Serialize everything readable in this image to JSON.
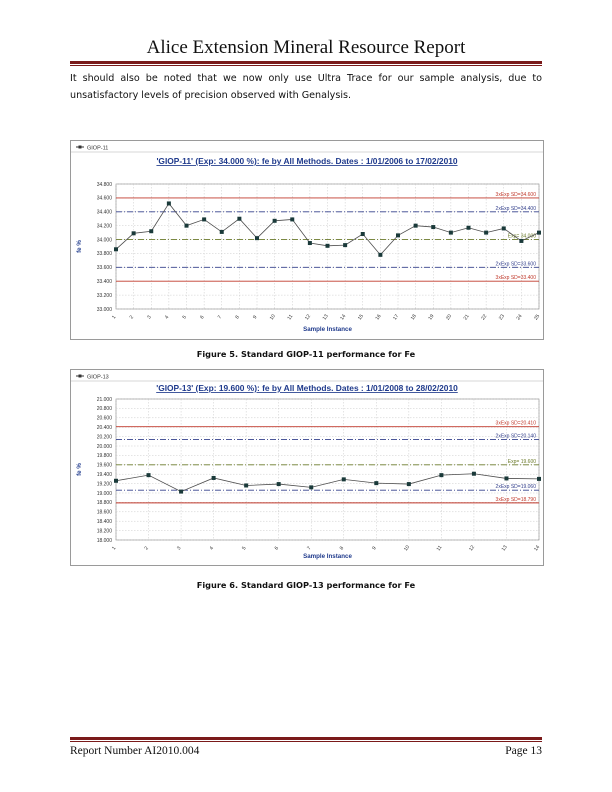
{
  "header": {
    "title": "Alice Extension Mineral Resource Report"
  },
  "intro_text": "It should also be noted that we now only use Ultra Trace for our sample analysis, due to unsatisfactory levels of precision observed with Genalysis.",
  "footer": {
    "report_number": "Report Number AI2010.004",
    "page": "Page 13"
  },
  "chart_data": [
    {
      "type": "line",
      "legend": "GIOP-11",
      "title": "'GIOP-11' (Exp: 34.000 %): fe by All Methods. Dates : 1/01/2006 to 17/02/2010",
      "xlabel": "Sample Instance",
      "ylabel": "fe %",
      "ylim": [
        33.0,
        34.8
      ],
      "yticks": [
        "34.800",
        "34.600",
        "34.400",
        "34.200",
        "34.000",
        "33.800",
        "33.600",
        "33.400",
        "33.200",
        "33.000"
      ],
      "categories": [
        "1",
        "2",
        "3",
        "4",
        "5",
        "6",
        "7",
        "8",
        "9",
        "10",
        "11",
        "12",
        "13",
        "14",
        "15",
        "16",
        "17",
        "18",
        "19",
        "20",
        "21",
        "22",
        "23",
        "24",
        "25"
      ],
      "values": [
        33.86,
        34.09,
        34.12,
        34.52,
        34.2,
        34.29,
        34.11,
        34.3,
        34.02,
        34.27,
        34.29,
        33.95,
        33.91,
        33.92,
        34.08,
        33.78,
        34.06,
        34.2,
        34.18,
        34.1,
        34.17,
        34.1,
        34.16,
        33.98,
        34.1
      ],
      "reference_lines": [
        {
          "label": "3xExp SD=34.600",
          "value": 34.6,
          "style": "solid",
          "color": "#c0392b"
        },
        {
          "label": "2xExp SD=34.400",
          "value": 34.4,
          "style": "dashdot",
          "color": "#34408c"
        },
        {
          "label": "Exp= 34.000",
          "value": 34.0,
          "style": "dashdot",
          "color": "#6b7a2a"
        },
        {
          "label": "2xExp SD=33.600",
          "value": 33.6,
          "style": "dashdot",
          "color": "#34408c"
        },
        {
          "label": "3xExp SD=33.400",
          "value": 33.4,
          "style": "solid",
          "color": "#c0392b"
        }
      ],
      "caption": "Figure 5. Standard GIOP-11 performance for Fe",
      "grid": true
    },
    {
      "type": "line",
      "legend": "GIOP-13",
      "title": "'GIOP-13' (Exp: 19.600 %): fe by All Methods. Dates : 1/01/2008 to 28/02/2010",
      "xlabel": "Sample Instance",
      "ylabel": "fe %",
      "ylim": [
        18.0,
        21.0
      ],
      "yticks": [
        "21.000",
        "20.800",
        "20.600",
        "20.400",
        "20.200",
        "20.000",
        "19.800",
        "19.600",
        "19.400",
        "19.200",
        "19.000",
        "18.800",
        "18.600",
        "18.400",
        "18.200",
        "18.000"
      ],
      "categories": [
        "1",
        "2",
        "3",
        "4",
        "5",
        "6",
        "7",
        "8",
        "9",
        "10",
        "11",
        "12",
        "13",
        "14"
      ],
      "values": [
        19.26,
        19.38,
        19.03,
        19.32,
        19.16,
        19.19,
        19.12,
        19.29,
        19.21,
        19.19,
        19.38,
        19.41,
        19.31,
        19.3
      ],
      "reference_lines": [
        {
          "label": "3xExp SD=20.410",
          "value": 20.41,
          "style": "solid",
          "color": "#c0392b"
        },
        {
          "label": "2xExp SD=20.140",
          "value": 20.14,
          "style": "dashdot",
          "color": "#34408c"
        },
        {
          "label": "Exp= 19.600",
          "value": 19.6,
          "style": "dashdot",
          "color": "#6b7a2a"
        },
        {
          "label": "2xExp SD=19.060",
          "value": 19.06,
          "style": "dashdot",
          "color": "#34408c"
        },
        {
          "label": "3xExp SD=18.790",
          "value": 18.79,
          "style": "solid",
          "color": "#c0392b"
        }
      ],
      "caption": "Figure 6. Standard GIOP-13 performance for Fe",
      "grid": true
    }
  ]
}
